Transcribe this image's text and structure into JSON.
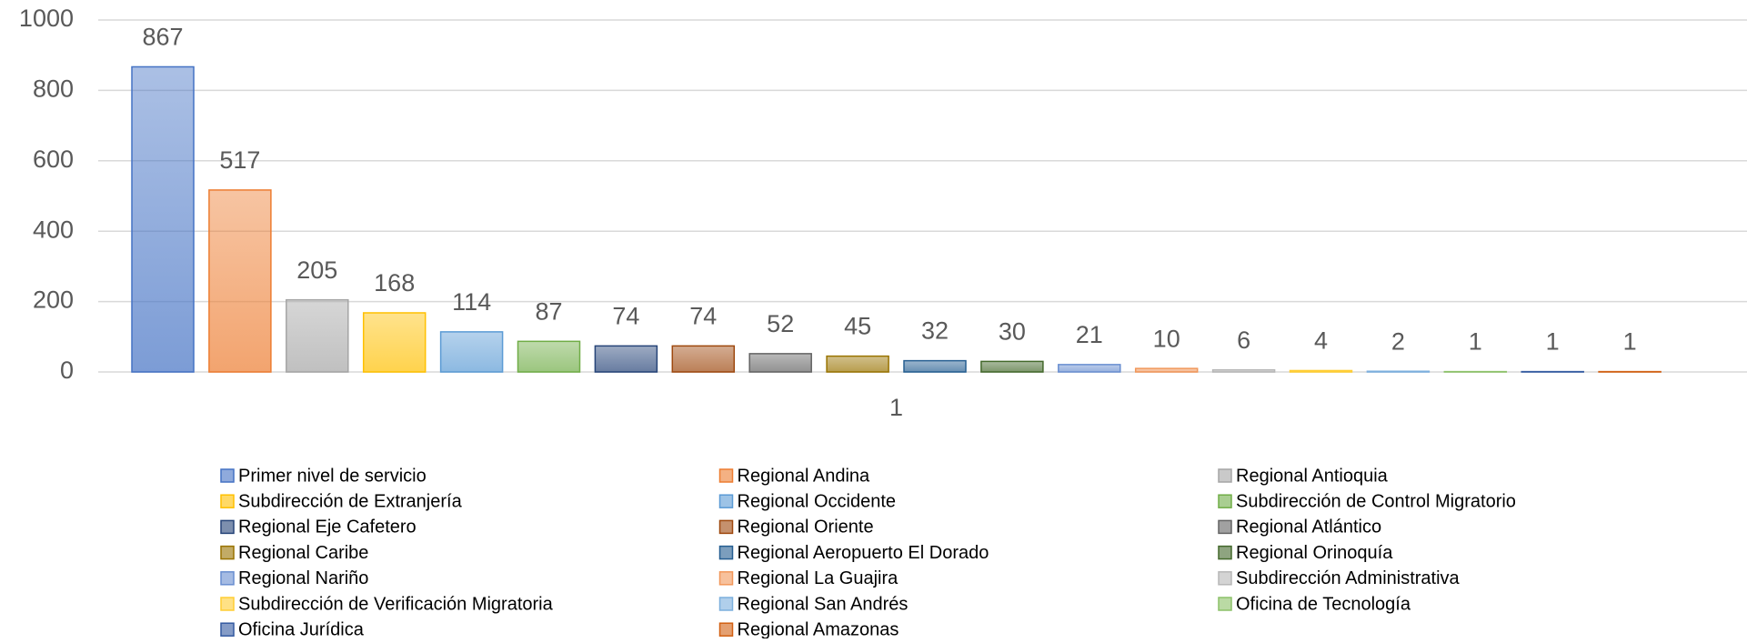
{
  "chart_data": {
    "type": "bar",
    "categories": [
      "1"
    ],
    "series": [
      {
        "name": "Primer nivel de servicio",
        "color": "#4472c4",
        "values": [
          867
        ]
      },
      {
        "name": "Regional Andina",
        "color": "#ed7d31",
        "values": [
          517
        ]
      },
      {
        "name": "Regional Antioquia",
        "color": "#a5a5a5",
        "values": [
          205
        ]
      },
      {
        "name": "Subdirección de Extranjería",
        "color": "#ffc000",
        "values": [
          168
        ]
      },
      {
        "name": "Regional Occidente",
        "color": "#5b9bd5",
        "values": [
          114
        ]
      },
      {
        "name": "Subdirección de Control Migratorio",
        "color": "#70ad47",
        "values": [
          87
        ]
      },
      {
        "name": "Regional Eje Cafetero",
        "color": "#264478",
        "values": [
          74
        ]
      },
      {
        "name": "Regional Oriente",
        "color": "#9e480e",
        "values": [
          74
        ]
      },
      {
        "name": "Regional Atlántico",
        "color": "#636363",
        "values": [
          52
        ]
      },
      {
        "name": "Regional Caribe",
        "color": "#997300",
        "values": [
          45
        ]
      },
      {
        "name": "Regional Aeropuerto El Dorado",
        "color": "#255e91",
        "values": [
          32
        ]
      },
      {
        "name": "Regional Orinoquía",
        "color": "#43682b",
        "values": [
          30
        ]
      },
      {
        "name": "Regional Nariño",
        "color": "#698ed0",
        "values": [
          21
        ]
      },
      {
        "name": "Regional La Guajira",
        "color": "#f1975a",
        "values": [
          10
        ]
      },
      {
        "name": "Subdirección Administrativa",
        "color": "#b7b7b7",
        "values": [
          6
        ]
      },
      {
        "name": "Subdirección de Verificación Migratoria",
        "color": "#ffcd33",
        "values": [
          4
        ]
      },
      {
        "name": "Regional San Andrés",
        "color": "#7cafdd",
        "values": [
          2
        ]
      },
      {
        "name": "Oficina de Tecnología",
        "color": "#8cc168",
        "values": [
          1
        ]
      },
      {
        "name": "Oficina Jurídica",
        "color": "#335aa1",
        "values": [
          1
        ]
      },
      {
        "name": "Regional Amazonas",
        "color": "#d26012",
        "values": [
          1
        ]
      }
    ],
    "ylim": [
      0,
      1000
    ],
    "yticks": [
      0,
      200,
      400,
      600,
      800,
      1000
    ],
    "grid": true
  }
}
